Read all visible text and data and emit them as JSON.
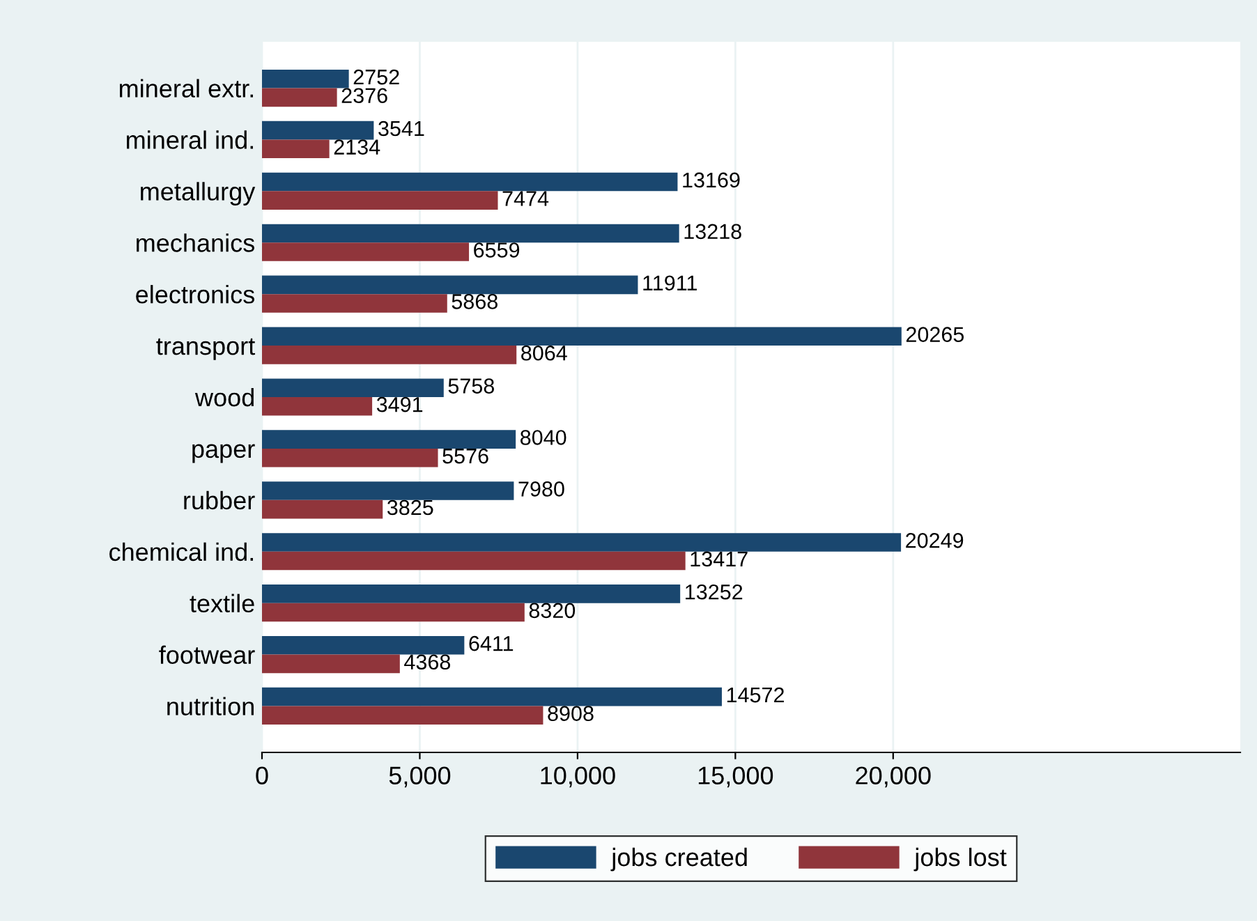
{
  "chart_data": {
    "type": "bar",
    "orientation": "horizontal",
    "categories": [
      "mineral extr.",
      "mineral ind.",
      "metallurgy",
      "mechanics",
      "electronics",
      "transport",
      "wood",
      "paper",
      "rubber",
      "chemical ind.",
      "textile",
      "footwear",
      "nutrition"
    ],
    "series": [
      {
        "name": "jobs created",
        "color": "#1a476f",
        "values": [
          2752,
          3541,
          13169,
          13218,
          11911,
          20265,
          5758,
          8040,
          7980,
          20249,
          13252,
          6411,
          14572
        ]
      },
      {
        "name": "jobs lost",
        "color": "#90353b",
        "values": [
          2376,
          2134,
          7474,
          6559,
          5868,
          8064,
          3491,
          5576,
          3825,
          13417,
          8320,
          4368,
          8908
        ]
      }
    ],
    "xlim": [
      0,
      31000
    ],
    "xticks": [
      0,
      {
        "value": 5000,
        "label": "5,000"
      },
      {
        "value": 10000,
        "label": "10,000"
      },
      {
        "value": 15000,
        "label": "15,000"
      },
      {
        "value": 20000,
        "label": "20,000"
      }
    ],
    "grid": "x",
    "legend": "bottom",
    "data_labels": true
  }
}
